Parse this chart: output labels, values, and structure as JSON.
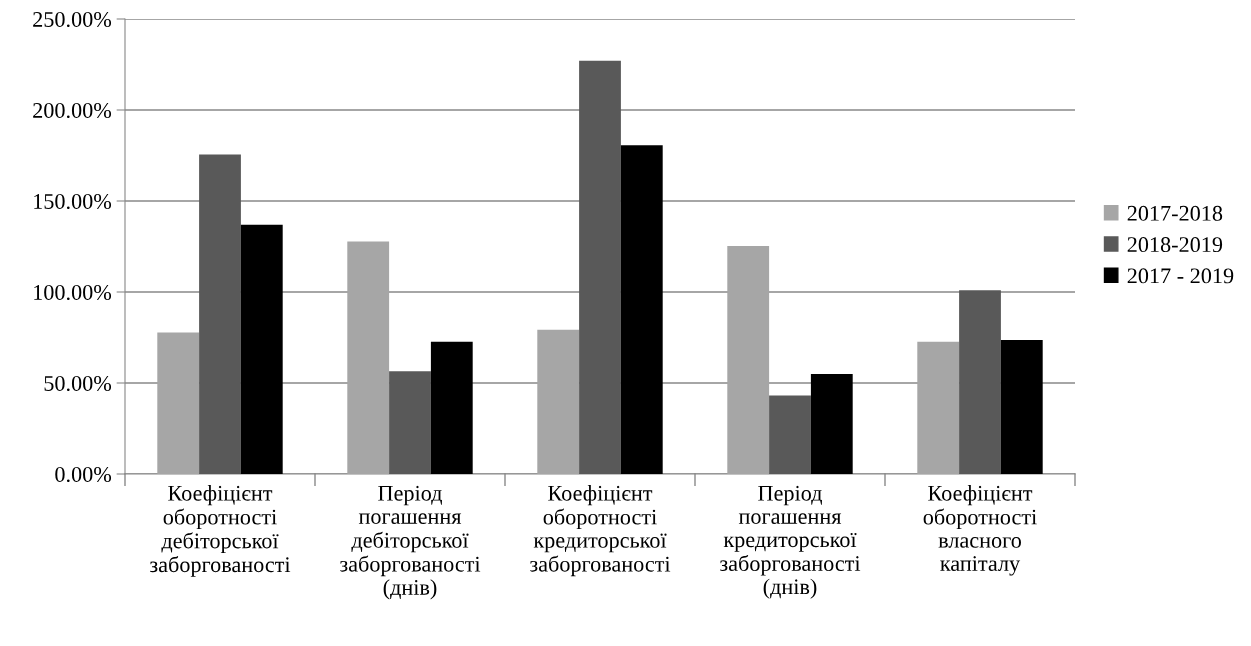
{
  "chart_data": {
    "type": "bar",
    "categories": [
      "Коефіцієнт\nоборотності\nдебіторської\nзаборгованості",
      "Період\nпогашення\nдебіторської\nзаборгованості\n(днів)",
      "Коефіцієнт\nоборотності\nкредиторської\nзаборгованості",
      "Період\nпогашення\nкредиторської\nзаборгованості\n(днів)",
      "Коефіцієнт\nоборотності\nвласного\nкапіталу"
    ],
    "series": [
      {
        "name": "2017-2018",
        "color": "#a6a6a6",
        "values": [
          77.7,
          127.8,
          79.2,
          125.3,
          72.7
        ]
      },
      {
        "name": "2018-2019",
        "color": "#595959",
        "values": [
          175.6,
          56.5,
          227.1,
          43.2,
          100.9
        ]
      },
      {
        "name": "2017 - 2019",
        "color": "#000000",
        "values": [
          137.0,
          72.6,
          180.7,
          54.9,
          73.6
        ]
      }
    ],
    "ylim": [
      0,
      250
    ],
    "yticks": [
      {
        "value": 0,
        "label": "0.00%"
      },
      {
        "value": 50,
        "label": "50.00%"
      },
      {
        "value": 100,
        "label": "100.00%"
      },
      {
        "value": 150,
        "label": "150.00%"
      },
      {
        "value": 200,
        "label": "200.00%"
      },
      {
        "value": 250,
        "label": "250.00%"
      }
    ],
    "grid": "y",
    "legend": "right"
  }
}
